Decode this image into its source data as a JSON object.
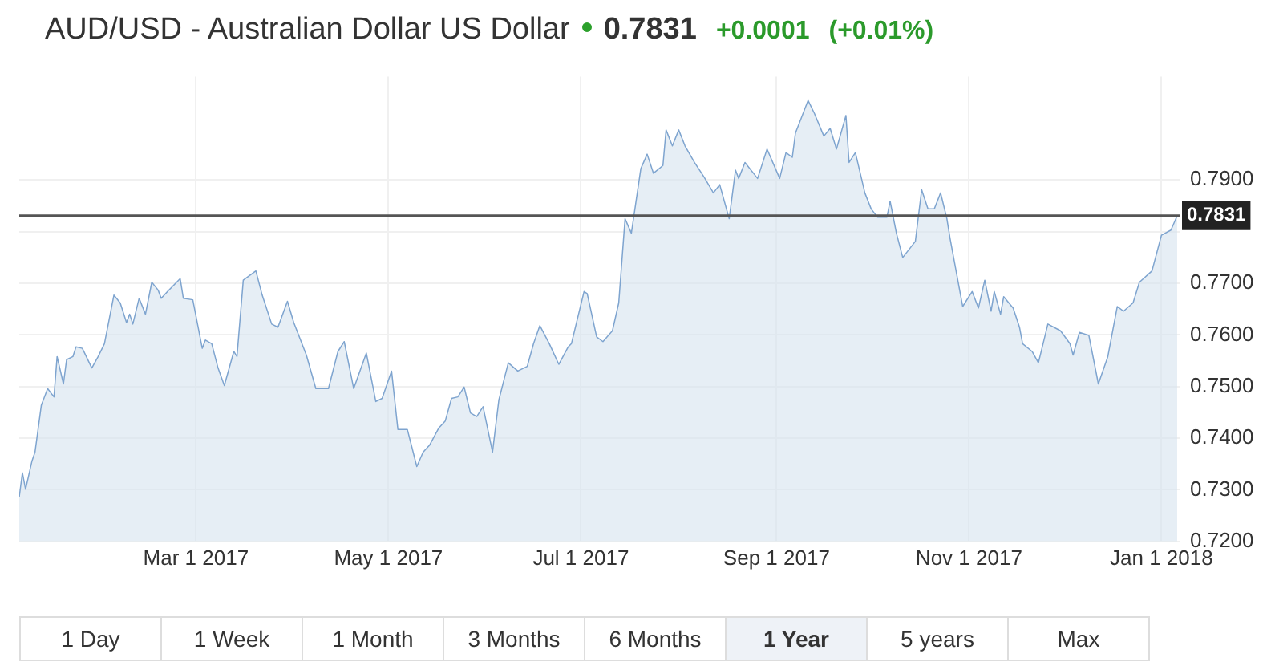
{
  "chart_data": {
    "type": "area",
    "title": "AUD/USD - Australian Dollar US Dollar",
    "annotations": [
      "0.7831",
      "+0.0001",
      "(+0.01%)",
      "1 Day",
      "1 Week",
      "1 Month",
      "3 Months",
      "6 Months",
      "1 Year",
      "5 years",
      "Max"
    ],
    "x": [
      "2017-01-04",
      "2017-01-05",
      "2017-01-06",
      "2017-01-08",
      "2017-01-09",
      "2017-01-11",
      "2017-01-13",
      "2017-01-15",
      "2017-01-16",
      "2017-01-18",
      "2017-01-19",
      "2017-01-21",
      "2017-01-22",
      "2017-01-24",
      "2017-01-27",
      "2017-01-29",
      "2017-01-31",
      "2017-02-03",
      "2017-02-05",
      "2017-02-07",
      "2017-02-08",
      "2017-02-09",
      "2017-02-11",
      "2017-02-13",
      "2017-02-15",
      "2017-02-17",
      "2017-02-18",
      "2017-02-20",
      "2017-02-24",
      "2017-02-25",
      "2017-02-28",
      "2017-03-03",
      "2017-03-04",
      "2017-03-06",
      "2017-03-08",
      "2017-03-10",
      "2017-03-13",
      "2017-03-14",
      "2017-03-16",
      "2017-03-20",
      "2017-03-22",
      "2017-03-25",
      "2017-03-27",
      "2017-03-30",
      "2017-04-01",
      "2017-04-05",
      "2017-04-08",
      "2017-04-12",
      "2017-04-15",
      "2017-04-17",
      "2017-04-20",
      "2017-04-24",
      "2017-04-27",
      "2017-04-29",
      "2017-05-02",
      "2017-05-04",
      "2017-05-07",
      "2017-05-10",
      "2017-05-12",
      "2017-05-14",
      "2017-05-17",
      "2017-05-19",
      "2017-05-21",
      "2017-05-23",
      "2017-05-25",
      "2017-05-27",
      "2017-05-29",
      "2017-05-31",
      "2017-06-03",
      "2017-06-05",
      "2017-06-08",
      "2017-06-11",
      "2017-06-14",
      "2017-06-16",
      "2017-06-18",
      "2017-06-21",
      "2017-06-24",
      "2017-06-27",
      "2017-06-28",
      "2017-07-02",
      "2017-07-03",
      "2017-07-06",
      "2017-07-08",
      "2017-07-11",
      "2017-07-13",
      "2017-07-15",
      "2017-07-17",
      "2017-07-20",
      "2017-07-22",
      "2017-07-24",
      "2017-07-27",
      "2017-07-28",
      "2017-07-30",
      "2017-08-01",
      "2017-08-03",
      "2017-08-06",
      "2017-08-09",
      "2017-08-12",
      "2017-08-14",
      "2017-08-17",
      "2017-08-19",
      "2017-08-20",
      "2017-08-22",
      "2017-08-26",
      "2017-08-29",
      "2017-09-02",
      "2017-09-04",
      "2017-09-06",
      "2017-09-07",
      "2017-09-11",
      "2017-09-13",
      "2017-09-16",
      "2017-09-18",
      "2017-09-20",
      "2017-09-23",
      "2017-09-24",
      "2017-09-26",
      "2017-09-29",
      "2017-10-01",
      "2017-10-03",
      "2017-10-06",
      "2017-10-07",
      "2017-10-09",
      "2017-10-11",
      "2017-10-15",
      "2017-10-17",
      "2017-10-19",
      "2017-10-21",
      "2017-10-23",
      "2017-10-25",
      "2017-10-26",
      "2017-10-30",
      "2017-11-02",
      "2017-11-04",
      "2017-11-06",
      "2017-11-08",
      "2017-11-09",
      "2017-11-11",
      "2017-11-12",
      "2017-11-15",
      "2017-11-17",
      "2017-11-18",
      "2017-11-21",
      "2017-11-23",
      "2017-11-26",
      "2017-11-30",
      "2017-12-03",
      "2017-12-04",
      "2017-12-06",
      "2017-12-09",
      "2017-12-12",
      "2017-12-15",
      "2017-12-18",
      "2017-12-20",
      "2017-12-23",
      "2017-12-25",
      "2017-12-29",
      "2018-01-01",
      "2018-01-04",
      "2018-01-06"
    ],
    "series": [
      {
        "color": "#7ea4cf",
        "values": [
          0.7286,
          0.7333,
          0.7301,
          0.7355,
          0.7373,
          0.7464,
          0.7496,
          0.748,
          0.7558,
          0.7505,
          0.7552,
          0.7558,
          0.7577,
          0.7574,
          0.7536,
          0.7558,
          0.7583,
          0.7677,
          0.7662,
          0.7624,
          0.764,
          0.7621,
          0.7671,
          0.764,
          0.7702,
          0.7687,
          0.7671,
          0.7684,
          0.7709,
          0.7671,
          0.7668,
          0.7574,
          0.759,
          0.7583,
          0.7536,
          0.7502,
          0.7568,
          0.7558,
          0.7706,
          0.7724,
          0.7677,
          0.7621,
          0.7615,
          0.7665,
          0.7624,
          0.7561,
          0.7496,
          0.7496,
          0.7568,
          0.7587,
          0.7496,
          0.7565,
          0.7471,
          0.7477,
          0.753,
          0.7417,
          0.7417,
          0.7345,
          0.7373,
          0.7386,
          0.742,
          0.7433,
          0.7477,
          0.748,
          0.7499,
          0.7449,
          0.7442,
          0.7461,
          0.7373,
          0.7474,
          0.7546,
          0.753,
          0.7539,
          0.7583,
          0.7618,
          0.7583,
          0.7543,
          0.7577,
          0.7583,
          0.7684,
          0.768,
          0.7596,
          0.7587,
          0.7608,
          0.7662,
          0.7825,
          0.7797,
          0.7922,
          0.795,
          0.7913,
          0.7928,
          0.7997,
          0.7966,
          0.7997,
          0.7966,
          0.7934,
          0.7906,
          0.7875,
          0.7891,
          0.7825,
          0.7919,
          0.7903,
          0.7934,
          0.7903,
          0.796,
          0.7903,
          0.7953,
          0.7944,
          0.7991,
          0.8054,
          0.8029,
          0.7985,
          0.8,
          0.796,
          0.8025,
          0.7934,
          0.7953,
          0.7875,
          0.7844,
          0.7828,
          0.7828,
          0.7859,
          0.7797,
          0.775,
          0.7781,
          0.7881,
          0.7844,
          0.7844,
          0.7875,
          0.7825,
          0.7787,
          0.7655,
          0.7684,
          0.7652,
          0.7706,
          0.7646,
          0.7684,
          0.764,
          0.7674,
          0.7652,
          0.7615,
          0.7583,
          0.7568,
          0.7546,
          0.7621,
          0.7608,
          0.7583,
          0.7561,
          0.7605,
          0.7599,
          0.7505,
          0.7558,
          0.7655,
          0.7646,
          0.7662,
          0.7702,
          0.7724,
          0.7793,
          0.7803,
          0.7831
        ]
      }
    ],
    "xlim": [
      "2017-01-04",
      "2018-01-07"
    ],
    "xticks": [
      {
        "value": "2017-03-01",
        "label": "Mar 1 2017"
      },
      {
        "value": "2017-05-01",
        "label": "May 1 2017"
      },
      {
        "value": "2017-07-01",
        "label": "Jul 1 2017"
      },
      {
        "value": "2017-09-01",
        "label": "Sep 1 2017"
      },
      {
        "value": "2017-11-01",
        "label": "Nov 1 2017"
      },
      {
        "value": "2018-01-01",
        "label": "Jan 1 2018"
      }
    ],
    "ylim": [
      0.72,
      0.81
    ],
    "yticks": [
      {
        "value": 0.72,
        "label": "0.7200"
      },
      {
        "value": 0.73,
        "label": "0.7300"
      },
      {
        "value": 0.74,
        "label": "0.7400"
      },
      {
        "value": 0.75,
        "label": "0.7500"
      },
      {
        "value": 0.76,
        "label": "0.7600"
      },
      {
        "value": 0.77,
        "label": "0.7700"
      },
      {
        "value": 0.78,
        "label": null
      },
      {
        "value": 0.79,
        "label": "0.7900"
      }
    ],
    "ref_lines": [
      {
        "axis": "y",
        "value": 0.7831,
        "label": "0.7831",
        "color": "#555555"
      }
    ],
    "grid": true,
    "legend": false
  }
}
